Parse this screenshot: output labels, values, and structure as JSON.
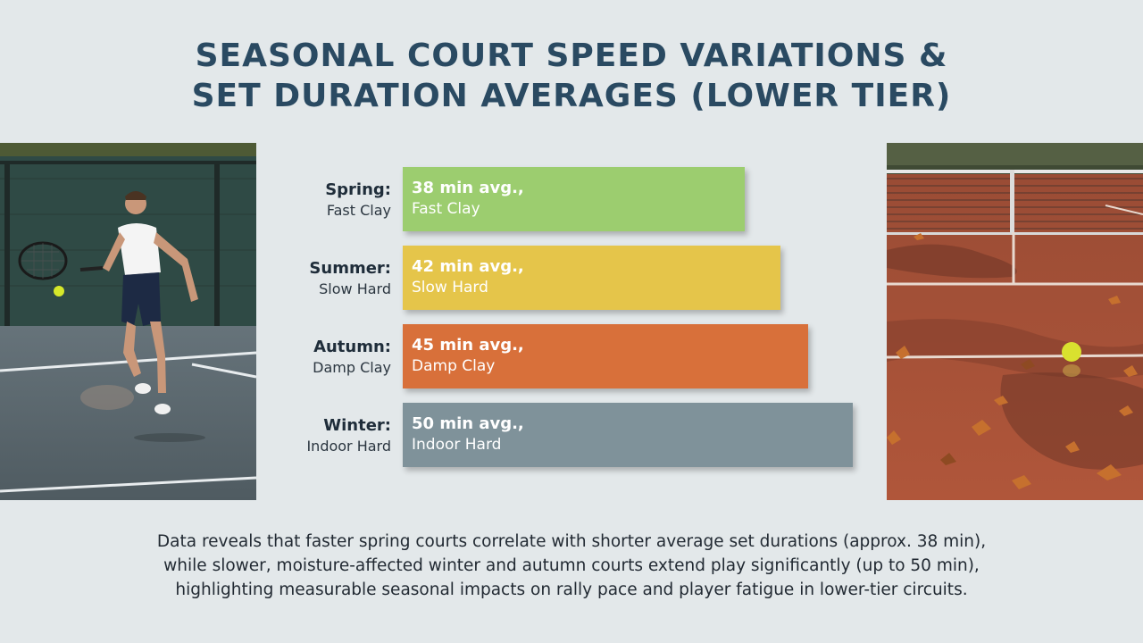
{
  "title_line1": "SEASONAL COURT SPEED VARIATIONS &",
  "title_line2": "SET DURATION AVERAGES (LOWER TIER)",
  "chart_data": {
    "type": "bar",
    "orientation": "horizontal",
    "unit": "min",
    "xlim": [
      0,
      55
    ],
    "categories": [
      "Spring",
      "Summer",
      "Autumn",
      "Winter"
    ],
    "rows": [
      {
        "season": "Spring:",
        "surface": "Fast Clay",
        "value": 38,
        "value_label": "38 min avg.,",
        "bar_surface": "Fast Clay",
        "color": "#9ccd6f"
      },
      {
        "season": "Summer:",
        "surface": "Slow Hard",
        "value": 42,
        "value_label": "42 min avg.,",
        "bar_surface": "Slow Hard",
        "color": "#e5c54a"
      },
      {
        "season": "Autumn:",
        "surface": "Damp Clay",
        "value": 45,
        "value_label": "45 min avg.,",
        "bar_surface": "Damp Clay",
        "color": "#d8703a"
      },
      {
        "season": "Winter:",
        "surface": "Indoor Hard",
        "value": 50,
        "value_label": "50 min avg.,",
        "bar_surface": "Indoor Hard",
        "color": "#7f929a"
      }
    ]
  },
  "caption_line1": "Data reveals that faster spring courts correlate with shorter average set durations (approx. 38 min),",
  "caption_line2": "while slower, moisture-affected winter and autumn courts extend play significantly (up to 50 min),",
  "caption_line3": "highlighting measurable seasonal impacts on rally pace and player fatigue in lower-tier circuits.",
  "images": {
    "left": "tennis-player-hard-court-photo",
    "right": "wet-clay-court-autumn-leaves-photo"
  }
}
